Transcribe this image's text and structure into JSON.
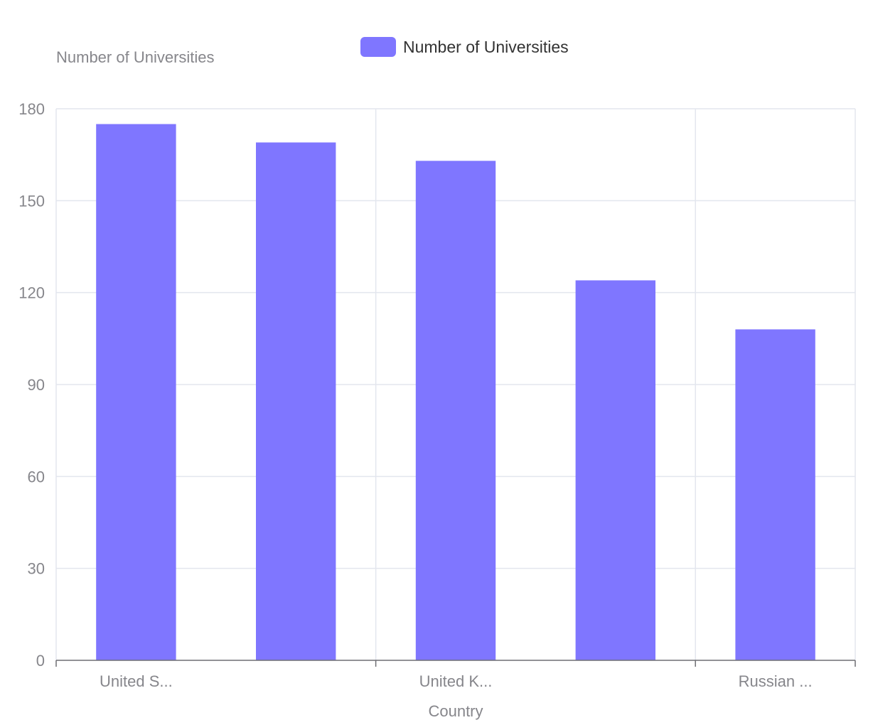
{
  "chart_data": {
    "type": "bar",
    "title": "",
    "xlabel": "Country",
    "ylabel": "Number of Universities",
    "categories": [
      "United S...",
      "",
      "United K...",
      "",
      "Russian ..."
    ],
    "series": [
      {
        "name": "Number of Universities",
        "values": [
          175,
          169,
          163,
          124,
          108
        ],
        "color": "#7f76ff"
      }
    ],
    "ylim": [
      0,
      180
    ],
    "yticks": [
      0,
      30,
      60,
      90,
      120,
      150,
      180
    ],
    "grid": true,
    "legend_position": "top-center"
  },
  "colors": {
    "bar": "#7f76ff",
    "grid": "#e3e6ee",
    "axis": "#6e6e73",
    "tick_text": "#86868b",
    "legend_text": "#333333"
  }
}
